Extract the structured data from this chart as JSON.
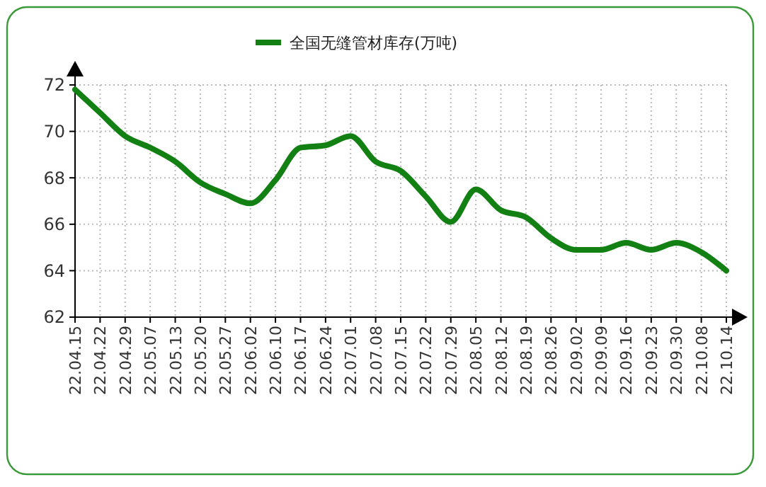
{
  "chart_data": {
    "type": "line",
    "categories": [
      "22.04.15",
      "22.04.22",
      "22.04.29",
      "22.05.07",
      "22.05.13",
      "22.05.20",
      "22.05.27",
      "22.06.02",
      "22.06.10",
      "22.06.17",
      "22.06.24",
      "22.07.01",
      "22.07.08",
      "22.07.15",
      "22.07.22",
      "22.07.29",
      "22.08.05",
      "22.08.12",
      "22.08.19",
      "22.08.26",
      "22.09.02",
      "22.09.09",
      "22.09.16",
      "22.09.23",
      "22.09.30",
      "22.10.08",
      "22.10.14"
    ],
    "series": [
      {
        "name": "全国无缝管材库存(万吨)",
        "color": "#138013",
        "values": [
          71.8,
          70.8,
          69.8,
          69.3,
          68.7,
          67.8,
          67.3,
          66.9,
          67.9,
          69.3,
          69.4,
          69.8,
          68.7,
          68.3,
          67.2,
          66.1,
          67.5,
          66.6,
          66.3,
          65.4,
          64.9,
          64.9,
          65.2,
          64.9,
          65.2,
          64.8,
          64.0
        ]
      }
    ],
    "ylim": [
      62,
      72
    ],
    "yticks": [
      62,
      64,
      66,
      68,
      70,
      72
    ],
    "grid": true,
    "legend": "top",
    "marker": "none",
    "line_style": "solid"
  }
}
